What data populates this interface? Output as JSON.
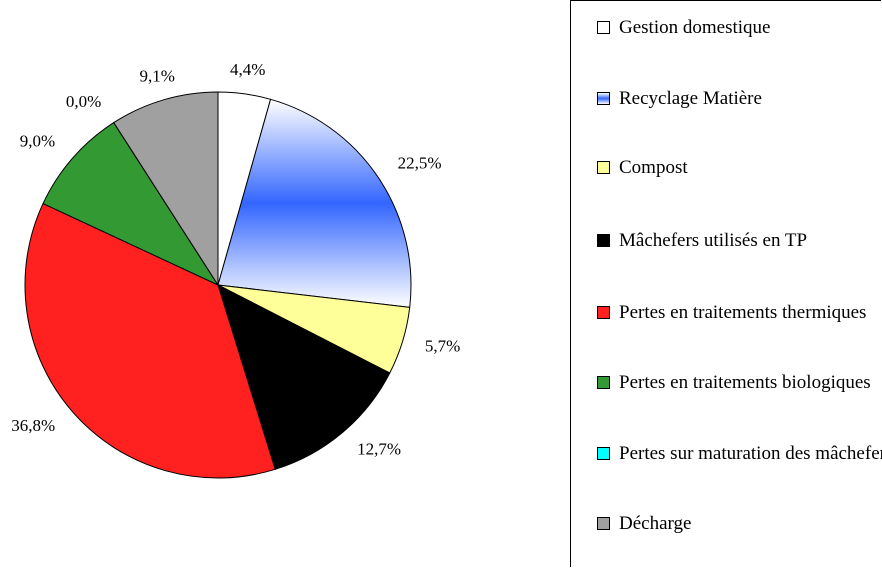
{
  "chart_data": {
    "type": "pie",
    "categories": [
      "Gestion domestique",
      "Recyclage Matière",
      "Compost",
      "Mâchefers utilisés en TP",
      "Pertes en traitements thermiques",
      "Pertes en traitements biologiques",
      "Pertes sur maturation des mâchefers",
      "Décharge"
    ],
    "values": [
      4.4,
      22.5,
      5.7,
      12.7,
      36.8,
      9.0,
      0.0,
      9.1
    ],
    "value_labels": [
      "4,4%",
      "22,5%",
      "5,7%",
      "12,7%",
      "36,8%",
      "9,0%",
      "0,0%",
      "9,1%"
    ],
    "colors": [
      "#ffffff",
      "#3366ff",
      "#ffff99",
      "#000000",
      "#ff2020",
      "#339933",
      "#00ffff",
      "#a0a0a0"
    ],
    "legend": "right"
  }
}
